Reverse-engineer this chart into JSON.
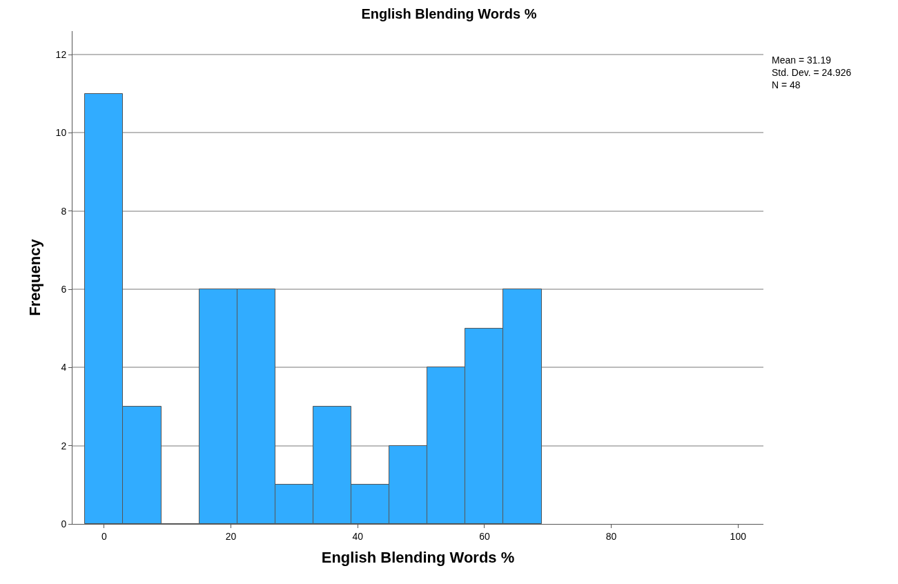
{
  "chart_data": {
    "type": "histogram",
    "title": "English Blending Words %",
    "xlabel": "English Blending Words %",
    "ylabel": "Frequency",
    "bins": [
      -3,
      3,
      9,
      15,
      21,
      27,
      33,
      39,
      45,
      51,
      57,
      63,
      69
    ],
    "values": [
      11,
      3,
      0,
      6,
      6,
      1,
      3,
      1,
      2,
      4,
      5,
      6
    ],
    "color": "#31acff",
    "xlim": [
      -5,
      104
    ],
    "xticks": [
      0,
      20,
      40,
      60,
      80,
      100
    ],
    "ylim": [
      0,
      12.6
    ],
    "yticks": [
      0,
      2,
      4,
      6,
      8,
      10,
      12
    ],
    "grid": "y",
    "annotations": [
      "Mean = 31.19",
      "Std. Dev. = 24.926",
      "N = 48"
    ]
  }
}
